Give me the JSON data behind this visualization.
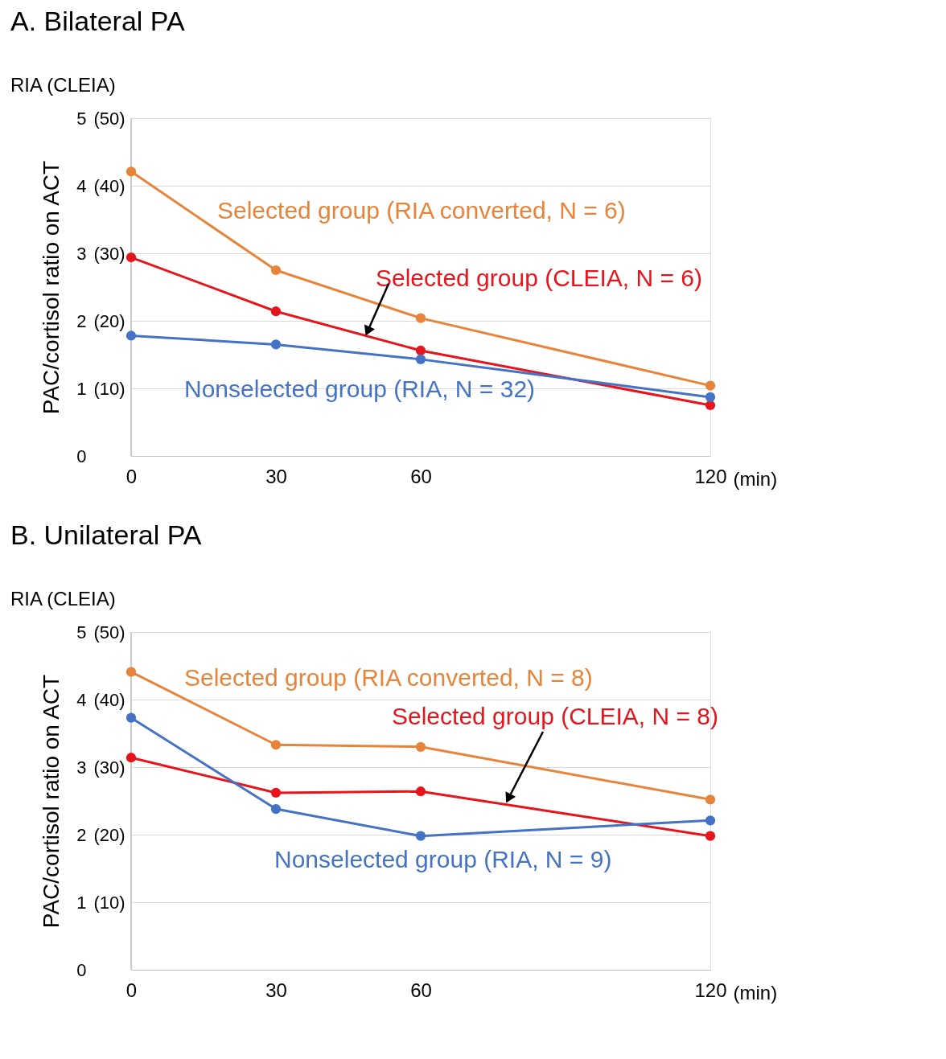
{
  "chart_data": [
    {
      "type": "line",
      "title": "A. Bilateral PA",
      "ylabel": "PAC/cortisol ratio on ACT",
      "xlabel": "(min)",
      "annotations": [
        "RIA (CLEIA)"
      ],
      "x": [
        0,
        30,
        60,
        120
      ],
      "xlim": [
        0,
        120
      ],
      "xticks": [
        0,
        30,
        60,
        120
      ],
      "ylim": [
        0,
        5
      ],
      "yticks": [
        0,
        1,
        2,
        3,
        4,
        5
      ],
      "y2lim": [
        0,
        50
      ],
      "y2ticks": [
        {
          "value": 10,
          "label": "(10)"
        },
        {
          "value": 20,
          "label": "(20)"
        },
        {
          "value": 30,
          "label": "(30)"
        },
        {
          "value": 40,
          "label": "(40)"
        },
        {
          "value": 50,
          "label": "(50)"
        }
      ],
      "grid": "y",
      "legend": false,
      "marker": "circle",
      "line_style": "solid",
      "series": [
        {
          "name": "Selected group (RIA converted, N = 6)",
          "color": "#e8843a",
          "values": [
            4.21,
            2.75,
            2.04,
            1.04
          ]
        },
        {
          "name": "Selected group (CLEIA, N = 6)",
          "color": "#e8141c",
          "values": [
            2.94,
            2.14,
            1.56,
            0.75
          ]
        },
        {
          "name": "Nonselected group (RIA, N = 32)",
          "color": "#4472c4",
          "values": [
            1.78,
            1.65,
            1.43,
            0.87
          ]
        }
      ]
    },
    {
      "type": "line",
      "title": "B. Unilateral PA",
      "ylabel": "PAC/cortisol ratio on ACT",
      "xlabel": "(min)",
      "annotations": [
        "RIA (CLEIA)"
      ],
      "x": [
        0,
        30,
        60,
        120
      ],
      "xlim": [
        0,
        120
      ],
      "xticks": [
        0,
        30,
        60,
        120
      ],
      "ylim": [
        0,
        5
      ],
      "yticks": [
        0,
        1,
        2,
        3,
        4,
        5
      ],
      "y2lim": [
        0,
        50
      ],
      "y2ticks": [
        {
          "value": 10,
          "label": "(10)"
        },
        {
          "value": 20,
          "label": "(20)"
        },
        {
          "value": 30,
          "label": "(30)"
        },
        {
          "value": 40,
          "label": "(40)"
        },
        {
          "value": 50,
          "label": "(50)"
        }
      ],
      "grid": "y",
      "legend": false,
      "marker": "circle",
      "line_style": "solid",
      "series": [
        {
          "name": "Selected group (RIA converted, N = 8)",
          "color": "#e8843a",
          "values": [
            4.41,
            3.33,
            3.3,
            2.52
          ]
        },
        {
          "name": "Selected group (CLEIA, N = 8)",
          "color": "#e8141c",
          "values": [
            3.14,
            2.62,
            2.64,
            1.98
          ]
        },
        {
          "name": "Nonselected group (RIA, N = 9)",
          "color": "#4472c4",
          "values": [
            3.73,
            2.38,
            1.98,
            2.21
          ]
        }
      ]
    }
  ]
}
